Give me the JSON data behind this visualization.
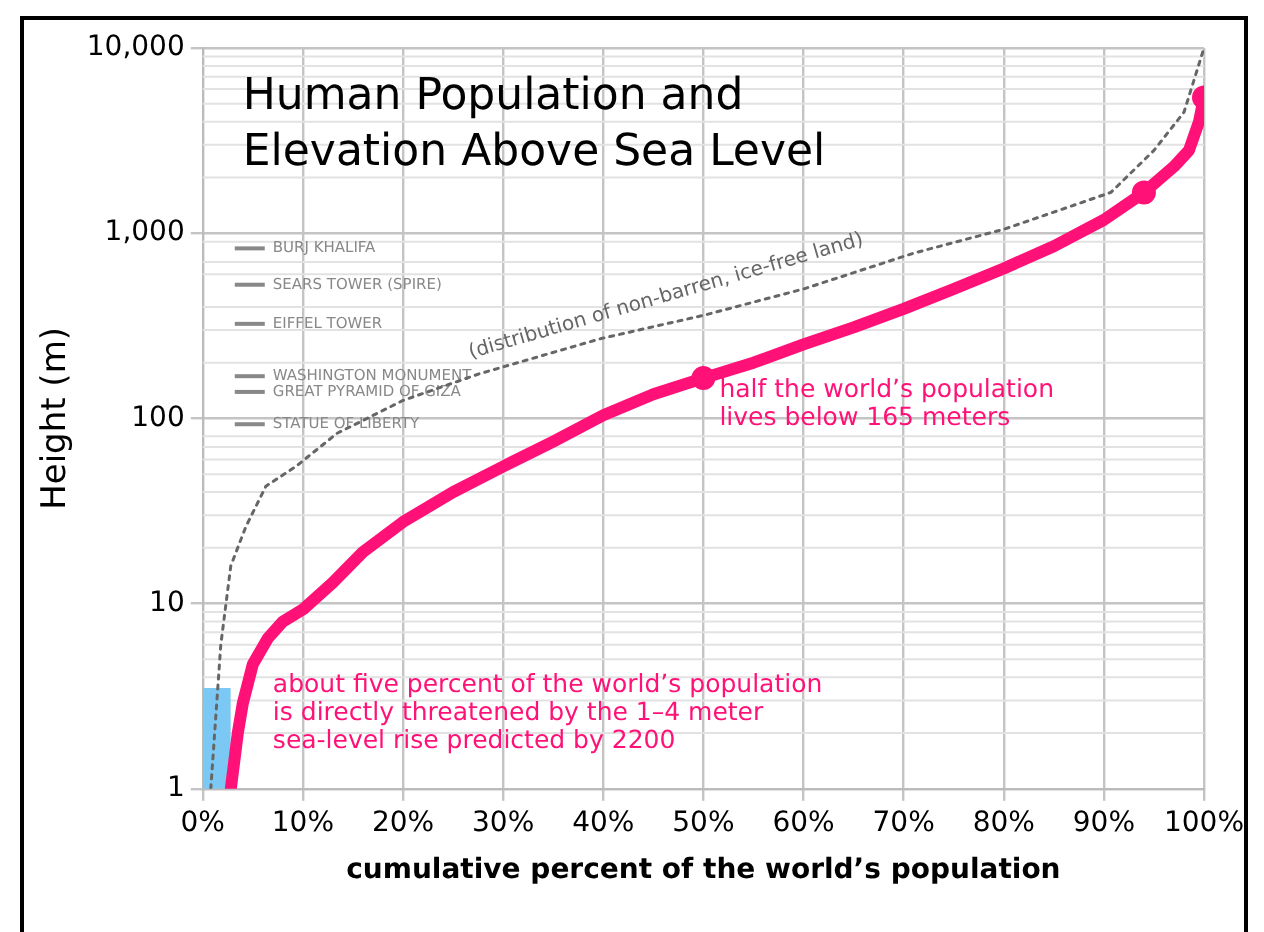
{
  "chart_data": {
    "type": "line",
    "title": "Human Population and Elevation Above Sea Level",
    "xlabel": "cumulative percent of the world’s population",
    "ylabel": "Height (m)",
    "log": "y",
    "grid": true,
    "legend": false,
    "line_style": "solid",
    "xlim": [
      0,
      100
    ],
    "xticks": [
      {
        "value": 0,
        "label": "0%"
      },
      {
        "value": 10,
        "label": "10%"
      },
      {
        "value": 20,
        "label": "20%"
      },
      {
        "value": 30,
        "label": "30%"
      },
      {
        "value": 40,
        "label": "40%"
      },
      {
        "value": 50,
        "label": "50%"
      },
      {
        "value": 60,
        "label": "60%"
      },
      {
        "value": 70,
        "label": "70%"
      },
      {
        "value": 80,
        "label": "80%"
      },
      {
        "value": 90,
        "label": "90%"
      },
      {
        "value": 100,
        "label": "100%"
      }
    ],
    "ylim": [
      1,
      10000
    ],
    "yticks": [
      1,
      10,
      100,
      {
        "value": 1000,
        "label": "1,000"
      },
      {
        "value": 10000,
        "label": "10,000"
      }
    ],
    "series": [
      {
        "name": "(distribution of non-barren, ice-free land)",
        "color": "#666666",
        "line_style": "dotted",
        "marker": "none",
        "x": [
          0.8,
          1.8,
          2.8,
          4.3,
          6.3,
          9.3,
          13.4,
          20,
          27.6,
          39.8,
          50,
          60,
          71,
          80,
          90.7,
          95,
          98,
          100
        ],
        "values": [
          1,
          6,
          16,
          26,
          43,
          55,
          83,
          125,
          174,
          270,
          360,
          500,
          780,
          1050,
          1660,
          2800,
          4500,
          10000
        ]
      },
      {
        "color": "#ff1177",
        "marker": "none",
        "x": [
          2.8,
          3.5,
          4,
          5,
          6.5,
          8,
          10,
          13,
          16,
          20,
          25,
          30,
          35,
          40,
          45,
          50,
          55,
          60,
          65,
          70,
          75,
          80,
          85,
          90,
          94,
          97,
          98.5,
          99.5,
          100
        ],
        "values": [
          1,
          2,
          2.9,
          4.7,
          6.5,
          8,
          9.3,
          13,
          19,
          27.6,
          40,
          55,
          75,
          104,
          135,
          165,
          200,
          251,
          310,
          390,
          500,
          645,
          850,
          1180,
          1660,
          2290,
          2800,
          4000,
          5400
        ]
      },
      {
        "type": "scatter",
        "color": "#ff1177",
        "marker": "circle",
        "x": [
          50,
          94,
          100
        ],
        "values": [
          165,
          1660,
          5400
        ]
      },
      {
        "type": "area",
        "color": "#7cc8f4",
        "marker": "none",
        "x": [
          0,
          2.8
        ],
        "values": [
          3.5,
          3.5
        ]
      }
    ],
    "ref_lines": [
      {
        "axis": "y",
        "value": 828,
        "label": "BURJ KHALIFA",
        "color": "#888888"
      },
      {
        "axis": "y",
        "value": 527,
        "label": "SEARS TOWER (SPIRE)",
        "color": "#888888"
      },
      {
        "axis": "y",
        "value": 324,
        "label": "EIFFEL TOWER",
        "color": "#888888"
      },
      {
        "axis": "y",
        "value": 169,
        "label": "WASHINGTON MONUMENT",
        "color": "#888888"
      },
      {
        "axis": "y",
        "value": 139,
        "label": "GREAT PYRAMID OF GIZA",
        "color": "#888888"
      },
      {
        "axis": "y",
        "value": 93,
        "label": "STATUE OF LIBERTY",
        "color": "#888888"
      }
    ],
    "annotations": [
      {
        "text": "half the world’s population\nlives below 165 meters",
        "x": 50,
        "y": 165
      },
      "about five percent of the world’s population\nis directly threatened by the 1–4 meter\nsea-level rise predicted by 2200"
    ]
  }
}
